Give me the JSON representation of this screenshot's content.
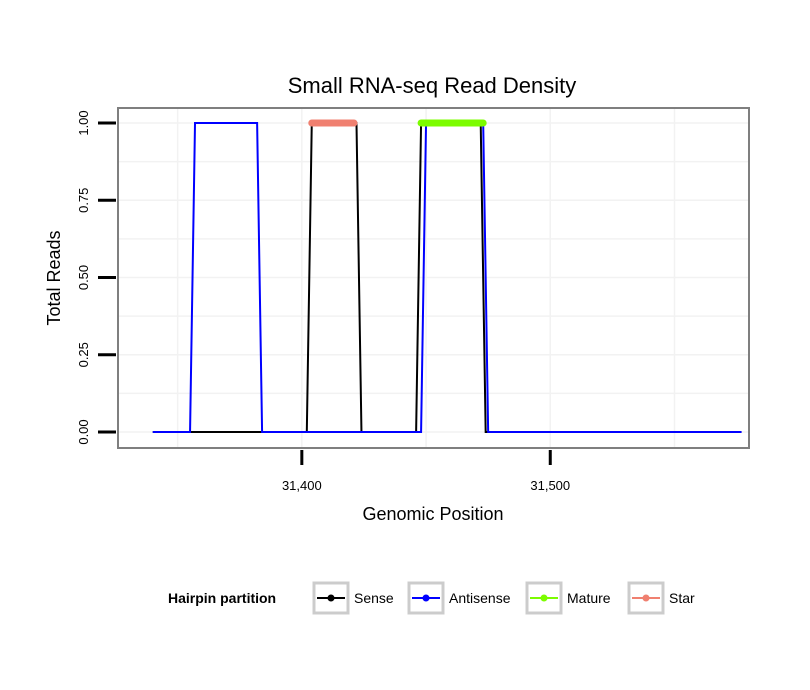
{
  "chart_data": {
    "type": "line",
    "title": "Small RNA-seq Read Density",
    "xlabel": "Genomic Position",
    "ylabel": "Total Reads",
    "xlim": [
      31326,
      31580
    ],
    "ylim": [
      0,
      1
    ],
    "x_ticks": [
      31400,
      31500
    ],
    "x_tick_labels": [
      "31,400",
      "31,500"
    ],
    "y_ticks": [
      0,
      0.25,
      0.5,
      0.75,
      1
    ],
    "y_tick_labels": [
      "0.00",
      "0.25",
      "0.50",
      "0.75",
      "1.00"
    ],
    "grid": true,
    "legend_position": "bottom",
    "legend_title": "Hairpin partition",
    "series": [
      {
        "name": "Sense",
        "color": "#000000",
        "x": [
          31340,
          31402,
          31404,
          31422,
          31424,
          31446,
          31448,
          31472,
          31474,
          31577
        ],
        "y": [
          0,
          0,
          1,
          1,
          0,
          0,
          1,
          1,
          0,
          0
        ]
      },
      {
        "name": "Antisense",
        "color": "#0000ff",
        "x": [
          31340,
          31355,
          31357,
          31382,
          31384,
          31448,
          31450,
          31473,
          31475,
          31577
        ],
        "y": [
          0,
          0,
          1,
          1,
          0,
          0,
          1,
          1,
          0,
          0
        ]
      },
      {
        "name": "Mature",
        "color": "#7cfc00",
        "x": [
          31448,
          31473
        ],
        "y": [
          1,
          1
        ]
      },
      {
        "name": "Star",
        "color": "#f08070",
        "x": [
          31404,
          31421
        ],
        "y": [
          1,
          1
        ]
      }
    ]
  }
}
